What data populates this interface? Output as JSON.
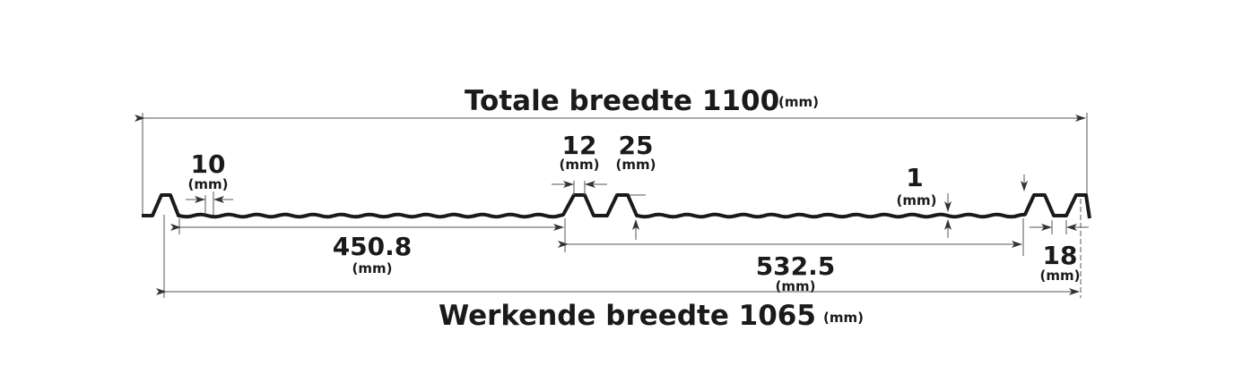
{
  "total_width": {
    "label": "Totale breedte 1100",
    "unit": "(mm)"
  },
  "working_width": {
    "label": "Werkende breedte 1065",
    "unit": "(mm)"
  },
  "dimensions": [
    {
      "value": "10",
      "unit": "(mm)"
    },
    {
      "value": "12",
      "unit": "(mm)"
    },
    {
      "value": "25",
      "unit": "(mm)"
    },
    {
      "value": "1",
      "unit": "(mm)"
    },
    {
      "value": "450.8",
      "unit": "(mm)"
    },
    {
      "value": "532.5",
      "unit": "(mm)"
    },
    {
      "value": "18",
      "unit": "(mm)"
    }
  ]
}
